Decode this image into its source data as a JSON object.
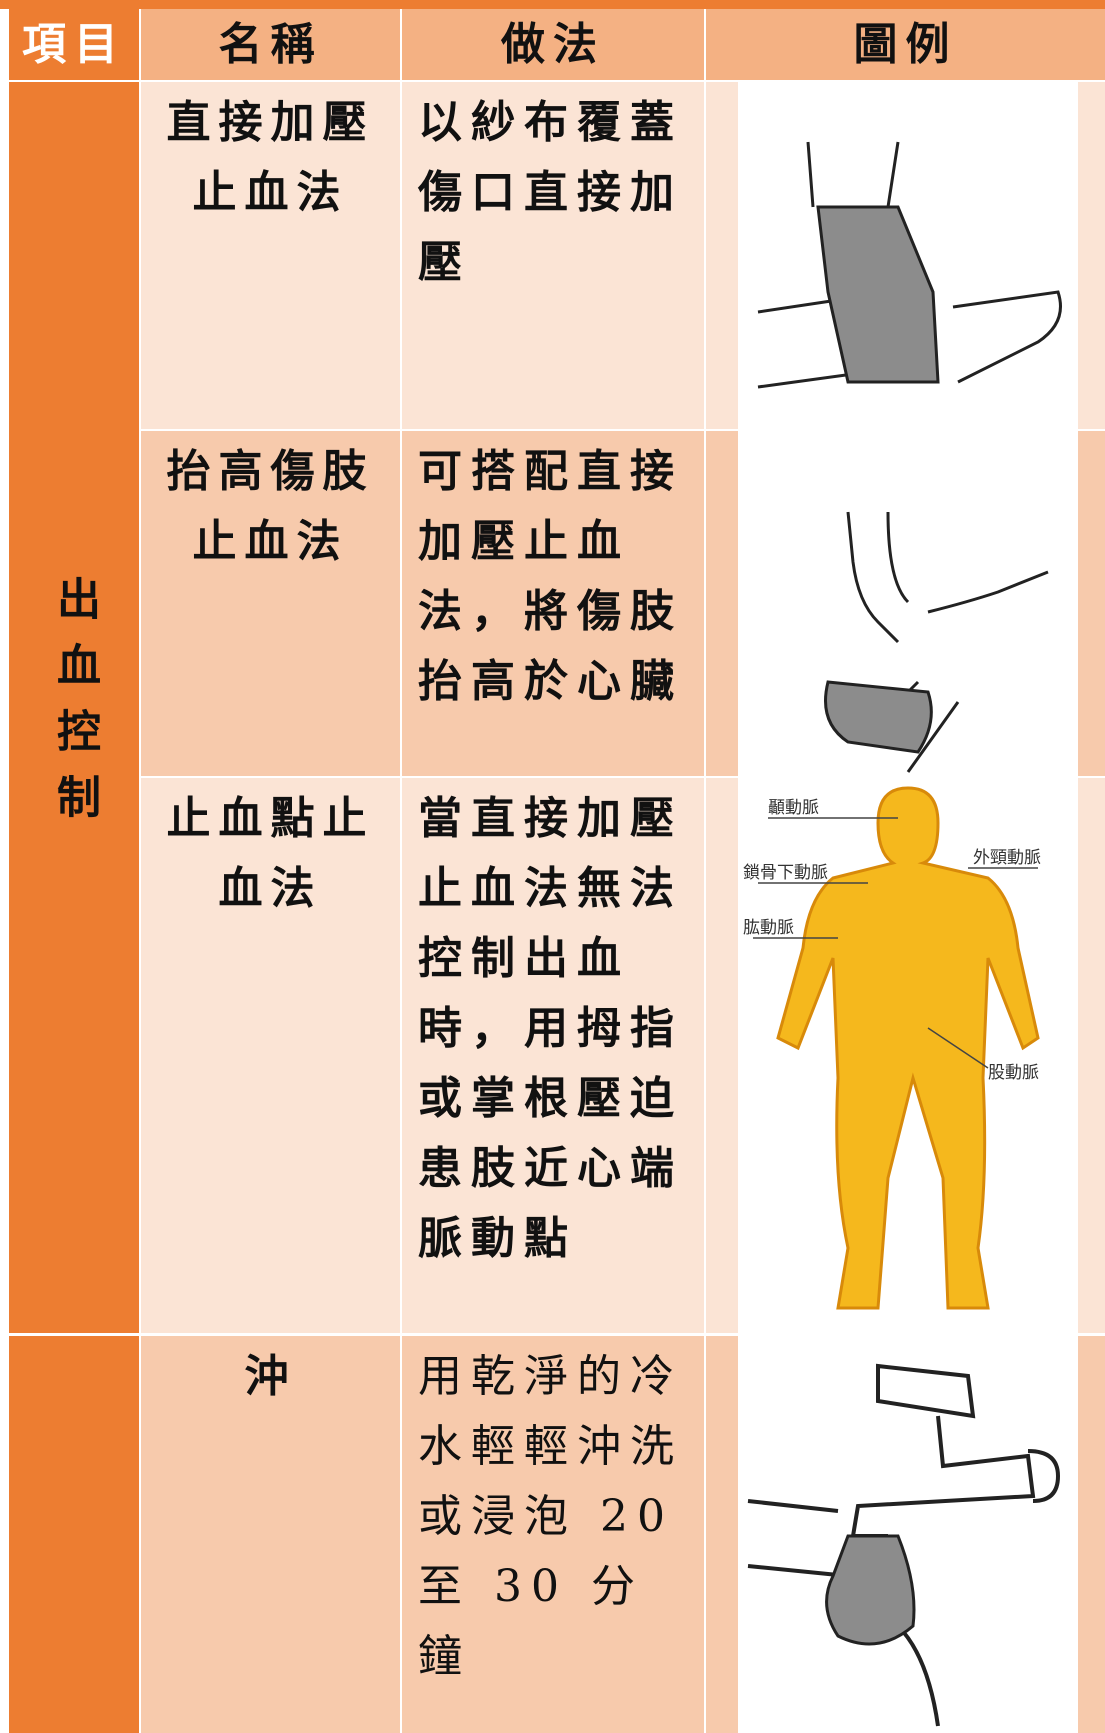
{
  "header": {
    "columns": [
      "項目",
      "名稱",
      "做法",
      "圖例"
    ]
  },
  "groups": [
    {
      "label": "出血控制",
      "rows": [
        {
          "name": "直接加壓止血法",
          "method": "以紗布覆蓋傷口直接加壓"
        },
        {
          "name": "抬高傷肢止血法",
          "method": "可搭配直接加壓止血法，將傷肢抬高於心臟"
        },
        {
          "name": "止血點止血法",
          "method": "當直接加壓止血法無法控制出血時，用拇指或掌根壓迫患肢近心端脈動點"
        }
      ]
    },
    {
      "rows": [
        {
          "name": "沖",
          "method": "用乾淨的冷水輕輕沖洗或浸泡 20 至 30 分鐘"
        }
      ]
    }
  ],
  "figure_labels": [
    "顳動脈",
    "鎖骨下動脈",
    "外頸動脈",
    "肱動脈",
    "股動脈"
  ]
}
